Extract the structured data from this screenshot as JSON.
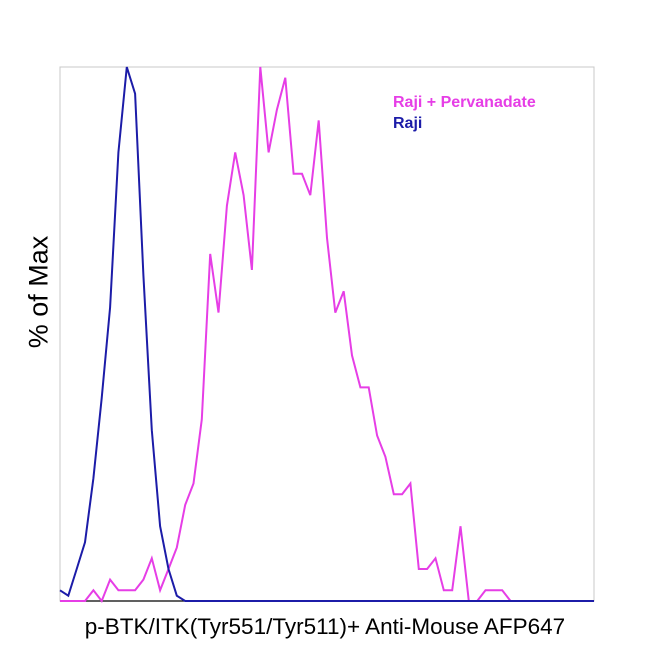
{
  "chart_data": {
    "type": "line",
    "title": "",
    "xlabel": "p-BTK/ITK(Tyr551/Tyr511)+ Anti-Mouse AFP647",
    "ylabel": "% of Max",
    "xlim": [
      0,
      64
    ],
    "ylim": [
      0,
      100
    ],
    "grid": false,
    "legend_position": "top-right",
    "series": [
      {
        "name": "Raji + Pervanadate",
        "color": "#e63ee6",
        "x": [
          0,
          1,
          2,
          3,
          4,
          5,
          6,
          7,
          8,
          9,
          10,
          11,
          12,
          13,
          14,
          15,
          16,
          17,
          18,
          19,
          20,
          21,
          22,
          23,
          24,
          25,
          26,
          27,
          28,
          29,
          30,
          31,
          32,
          33,
          34,
          35,
          36,
          37,
          38,
          39,
          40,
          41,
          42,
          43,
          44,
          45,
          46,
          47,
          48,
          49,
          50,
          51,
          52,
          53,
          54,
          55,
          56,
          57,
          58,
          59,
          60,
          61,
          62,
          63,
          64
        ],
        "values": [
          0,
          0,
          0,
          0,
          2,
          0,
          4,
          2,
          2,
          2,
          4,
          8,
          2,
          6,
          10,
          18,
          22,
          34,
          65,
          54,
          74,
          84,
          76,
          62,
          100,
          84,
          92,
          98,
          80,
          80,
          76,
          90,
          68,
          54,
          58,
          46,
          40,
          40,
          31,
          27,
          20,
          20,
          22,
          6,
          6,
          8,
          2,
          2,
          14,
          0,
          0,
          2,
          2,
          2,
          0,
          0,
          0,
          0,
          0,
          0,
          0,
          0,
          0,
          0,
          0
        ]
      },
      {
        "name": "Raji",
        "color": "#1c1ca8",
        "x": [
          0,
          1,
          2,
          3,
          4,
          5,
          6,
          7,
          8,
          9,
          10,
          11,
          12,
          13,
          14,
          15,
          16,
          17,
          18,
          19,
          20,
          21,
          22,
          23,
          24,
          25,
          26,
          27,
          28,
          29,
          30,
          31,
          32,
          33,
          34,
          35,
          36,
          37,
          38,
          39,
          40,
          41,
          42,
          43,
          44,
          45,
          46,
          47,
          48,
          49,
          50,
          51,
          52,
          53,
          54,
          55,
          56,
          57,
          58,
          59,
          60,
          61,
          62,
          63,
          64
        ],
        "values": [
          2,
          1,
          6,
          11,
          23,
          38,
          55,
          84,
          100,
          95,
          61,
          32,
          14,
          6,
          1,
          0,
          0,
          0,
          0,
          0,
          0,
          0,
          0,
          0,
          0,
          0,
          0,
          0,
          0,
          0,
          0,
          0,
          0,
          0,
          0,
          0,
          0,
          0,
          0,
          0,
          0,
          0,
          0,
          0,
          0,
          0,
          0,
          0,
          0,
          0,
          0,
          0,
          0,
          0,
          0,
          0,
          0,
          0,
          0,
          0,
          0,
          0,
          0,
          0,
          0
        ]
      }
    ]
  }
}
